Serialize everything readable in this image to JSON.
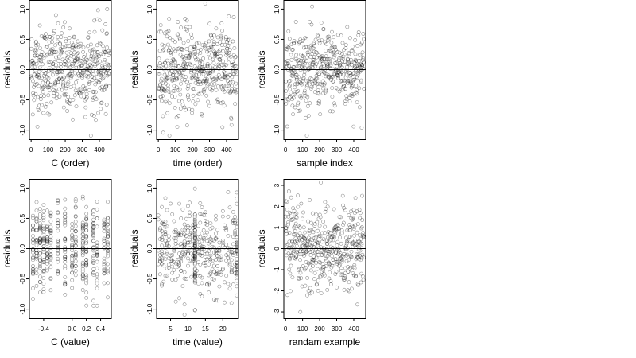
{
  "chart_data": [
    {
      "type": "scatter",
      "xlabel": "C (order)",
      "ylabel": "residuals",
      "xlim": [
        -10,
        470
      ],
      "ylim": [
        -1.15,
        1.15
      ],
      "xticks": [
        0,
        100,
        200,
        300,
        400
      ],
      "yticks": [
        -1.0,
        -0.5,
        0.0,
        0.5,
        1.0
      ],
      "yticklabels": [
        "-1.0",
        "-0.5",
        "0.0",
        "0.5",
        "1.0"
      ],
      "hline": 0,
      "n_points": 460,
      "x_kind": "index",
      "y_sd": 0.36,
      "x": [],
      "y": []
    },
    {
      "type": "scatter",
      "xlabel": "time (order)",
      "ylabel": "residuals",
      "xlim": [
        -10,
        470
      ],
      "ylim": [
        -1.15,
        1.15
      ],
      "xticks": [
        0,
        100,
        200,
        300,
        400
      ],
      "yticks": [
        -1.0,
        -0.5,
        0.0,
        0.5,
        1.0
      ],
      "yticklabels": [
        "-1.0",
        "-0.5",
        "0.0",
        "0.5",
        "1.0"
      ],
      "hline": 0,
      "n_points": 460,
      "x_kind": "index",
      "y_sd": 0.36,
      "x": [],
      "y": []
    },
    {
      "type": "scatter",
      "xlabel": "sample index",
      "ylabel": "residuals",
      "xlim": [
        -10,
        470
      ],
      "ylim": [
        -1.15,
        1.15
      ],
      "xticks": [
        0,
        100,
        200,
        300,
        400
      ],
      "yticks": [
        -1.0,
        -0.5,
        0.0,
        0.5,
        1.0
      ],
      "yticklabels": [
        "-1.0",
        "-0.5",
        "0.0",
        "0.5",
        "1.0"
      ],
      "hline": 0,
      "n_points": 460,
      "x_kind": "index",
      "y_sd": 0.33,
      "x": [],
      "y": []
    },
    {
      "type": "scatter",
      "xlabel": "C (value)",
      "ylabel": "residuals",
      "xlim": [
        -0.6,
        0.55
      ],
      "ylim": [
        -1.15,
        1.15
      ],
      "xticks": [
        -0.4,
        0.0,
        0.2,
        0.4
      ],
      "xticklabels": [
        "-0.4",
        "0.0",
        "0.2",
        "0.4"
      ],
      "yticks": [
        -1.0,
        -0.5,
        0.0,
        0.5,
        1.0
      ],
      "yticklabels": [
        "-1.0",
        "-0.5",
        "0.0",
        "0.5",
        "1.0"
      ],
      "hline": 0,
      "n_points": 460,
      "x_kind": "discrete",
      "x_levels": [
        -0.55,
        -0.5,
        -0.45,
        -0.4,
        -0.35,
        -0.3,
        -0.2,
        -0.1,
        0.0,
        0.05,
        0.15,
        0.2,
        0.3,
        0.35,
        0.45,
        0.5
      ],
      "y_sd": 0.36,
      "x": [],
      "y": []
    },
    {
      "type": "scatter",
      "xlabel": "time (value)",
      "ylabel": "residuals",
      "xlim": [
        1,
        24.5
      ],
      "ylim": [
        -1.15,
        1.15
      ],
      "xticks": [
        5,
        10,
        15,
        20
      ],
      "yticks": [
        -1.0,
        -0.5,
        0.0,
        0.5,
        1.0
      ],
      "yticklabels": [
        "-1.0",
        "-0.5",
        "0.0",
        "0.5",
        "1.0"
      ],
      "hline": 0,
      "n_points": 460,
      "x_kind": "continuous",
      "x_clusters": [
        12,
        24
      ],
      "y_sd": 0.36,
      "x": [],
      "y": []
    },
    {
      "type": "scatter",
      "xlabel": "randam example",
      "ylabel": "residuals",
      "xlim": [
        -10,
        470
      ],
      "ylim": [
        -3.3,
        3.3
      ],
      "xticks": [
        0,
        100,
        200,
        300,
        400
      ],
      "yticks": [
        -3,
        -2,
        -1,
        0,
        1,
        2,
        3
      ],
      "yticklabels": [
        "-3",
        "-2",
        "-1",
        "0",
        "1",
        "2",
        "3"
      ],
      "hline": 0,
      "n_points": 460,
      "x_kind": "index",
      "y_sd": 1.0,
      "x": [],
      "y": []
    }
  ]
}
